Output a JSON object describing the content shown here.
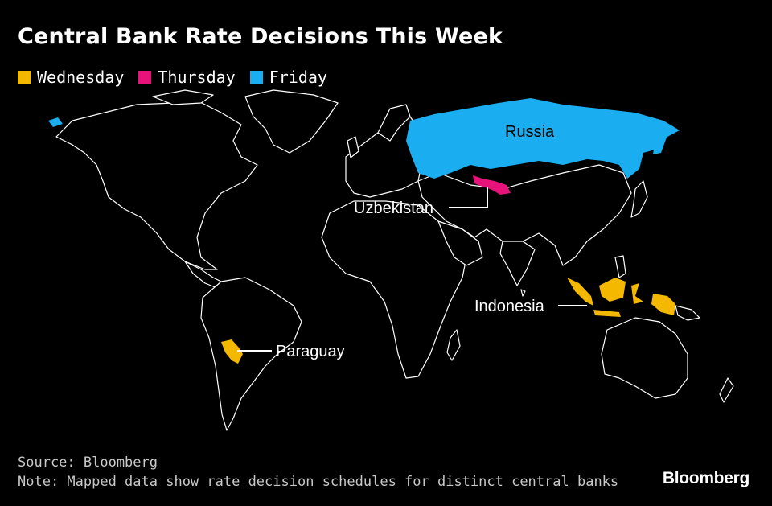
{
  "title": "Central Bank Rate Decisions This Week",
  "legend": [
    {
      "label": "Wednesday",
      "color": "#F5B800"
    },
    {
      "label": "Thursday",
      "color": "#E8137A"
    },
    {
      "label": "Friday",
      "color": "#1AADEF"
    }
  ],
  "map": {
    "land_fill": "#000000",
    "border_color": "#FFFFFF",
    "highlighted": [
      {
        "country": "Russia",
        "day": "Friday",
        "color": "#1AADEF"
      },
      {
        "country": "Uzbekistan",
        "day": "Thursday",
        "color": "#E8137A"
      },
      {
        "country": "Indonesia",
        "day": "Wednesday",
        "color": "#F5B800"
      },
      {
        "country": "Paraguay",
        "day": "Wednesday",
        "color": "#F5B800"
      }
    ]
  },
  "source": "Source: Bloomberg",
  "note": "Note: Mapped data show rate decision schedules for distinct central banks",
  "brand": "Bloomberg"
}
